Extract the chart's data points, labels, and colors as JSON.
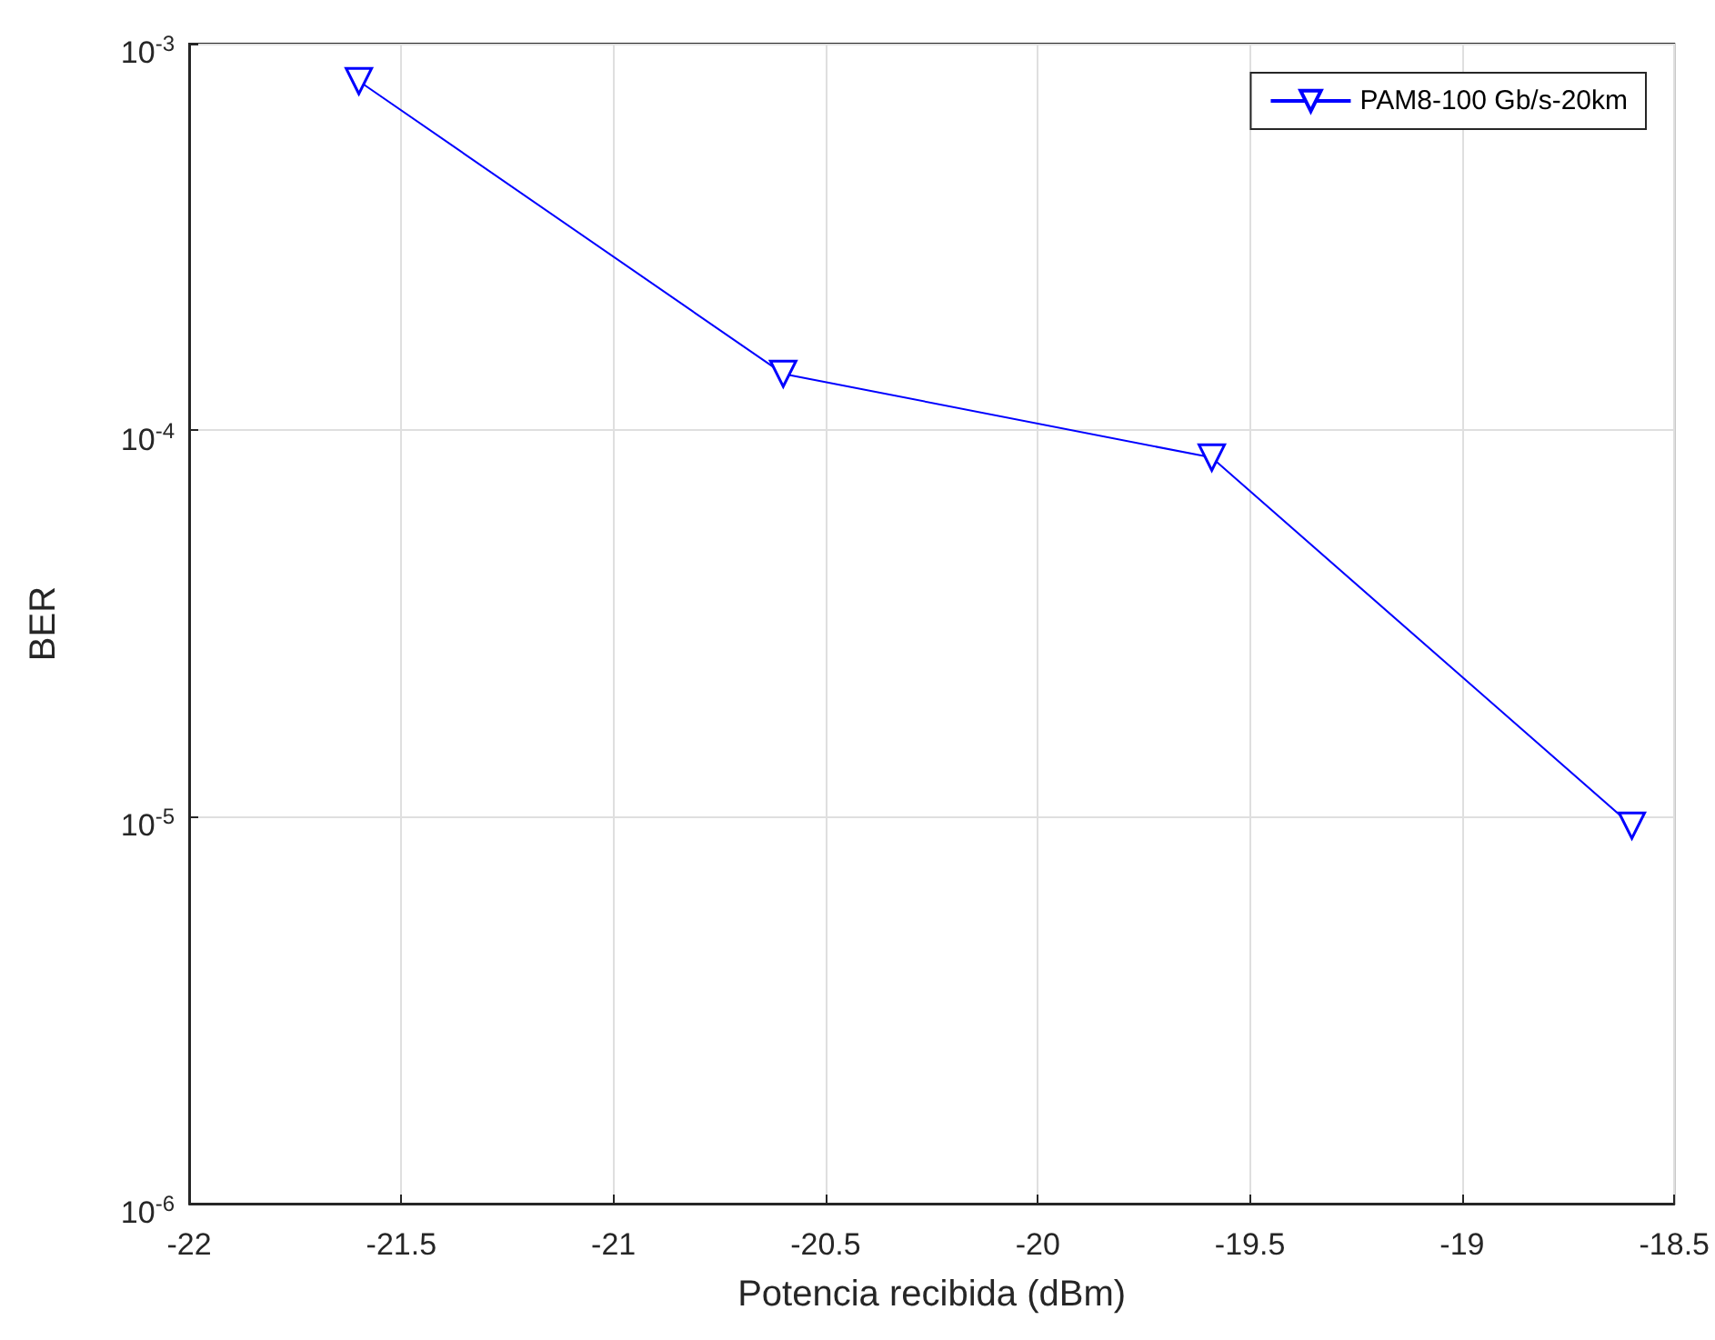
{
  "chart_data": {
    "type": "line",
    "xlabel": "Potencia recibida (dBm)",
    "ylabel": "BER",
    "x": [
      -21.6,
      -20.6,
      -19.59,
      -18.6
    ],
    "series": [
      {
        "name": "PAM8-100 Gb/s-20km",
        "color": "#0000ff",
        "values": [
          0.0008,
          0.00014,
          8.5e-05,
          9.5e-06
        ]
      }
    ],
    "xlim": [
      -22,
      -18.5
    ],
    "xticks": [
      -22,
      -21.5,
      -21,
      -20.5,
      -20,
      -19.5,
      -19,
      -18.5
    ],
    "ylim": [
      1e-06,
      0.001
    ],
    "yticks": [
      {
        "value": 1e-06,
        "label": "10$^{-6}$"
      },
      {
        "value": 1e-05,
        "label": "10$^{-5}$"
      },
      {
        "value": 0.0001,
        "label": "10$^{-4}$"
      },
      {
        "value": 0.001,
        "label": "10$^{-3}$"
      }
    ],
    "log": "y",
    "grid": true,
    "legend": "top right",
    "marker": "triangle",
    "line_style": "solid"
  }
}
